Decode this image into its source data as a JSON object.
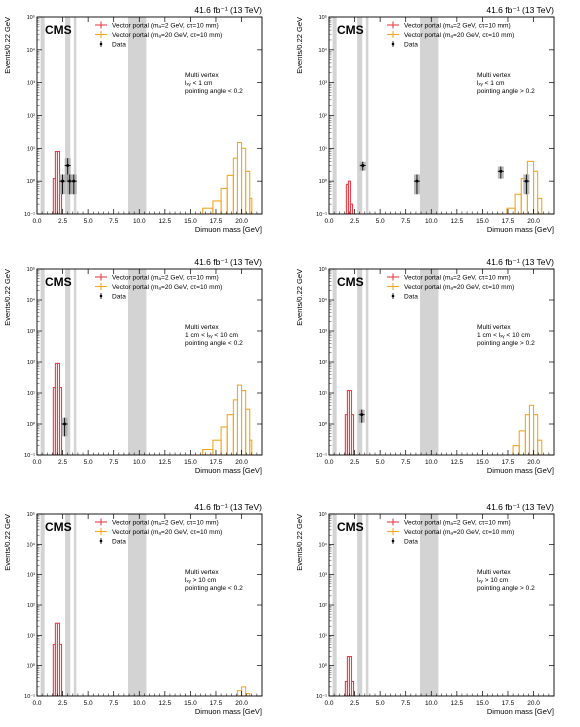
{
  "lumi": "41.6 fb⁻¹ (13 TeV)",
  "cms": "CMS",
  "xlabel": "Dimuon mass [GeV]",
  "ylabel": "Events/0.22 GeV",
  "legend": {
    "sig1": "Vector portal (mₐ=2 GeV, cτ=10 mm)",
    "sig2": "Vector portal (mₐ=20 GeV, cτ=10 mm)",
    "data": "Data"
  },
  "colors": {
    "sig1": "#e8404a",
    "sig2": "#f5a623",
    "band": "#d3d3d3",
    "unc": "#aaaaaa"
  },
  "chart_data": [
    {
      "type": "histogram",
      "region": [
        "Multi vertex",
        "lₓᵧ < 1 cm",
        "pointing angle < 0.2"
      ],
      "xlim": [
        0,
        22
      ],
      "ylim": [
        0.1,
        100000
      ],
      "yscale": "log",
      "xticks": [
        "0.0",
        "2.5",
        "5.0",
        "7.5",
        "10.0",
        "12.5",
        "15.0",
        "17.5",
        "20.0"
      ],
      "yticks": [
        "10⁻¹",
        "10⁰",
        "10¹",
        "10²",
        "10³",
        "10⁴",
        "10⁵"
      ],
      "masked_bands": [
        [
          0.35,
          0.75
        ],
        [
          2.75,
          3.25
        ],
        [
          3.6,
          3.85
        ],
        [
          8.9,
          10.7
        ]
      ],
      "sig1": [
        [
          1.6,
          1.8,
          1.2
        ],
        [
          1.8,
          2.0,
          8
        ],
        [
          2.0,
          2.2,
          8
        ],
        [
          2.2,
          2.4,
          1.0
        ]
      ],
      "sig2": [
        [
          16.2,
          17.2,
          0.15
        ],
        [
          17.2,
          18.0,
          0.25
        ],
        [
          18.0,
          18.6,
          0.6
        ],
        [
          18.6,
          19.2,
          1.5
        ],
        [
          19.2,
          19.6,
          5
        ],
        [
          19.6,
          20.0,
          15
        ],
        [
          20.0,
          20.4,
          10
        ],
        [
          20.4,
          20.8,
          2
        ],
        [
          20.8,
          21.0,
          0.3
        ]
      ],
      "data": [
        {
          "x": 2.5,
          "y": 1.0,
          "unc": 0.6
        },
        {
          "x": 3.0,
          "y": 3.0,
          "unc": 2.0
        },
        {
          "x": 3.2,
          "y": 1.0,
          "unc": 0.6
        },
        {
          "x": 3.6,
          "y": 1.0,
          "unc": 0.6
        }
      ]
    },
    {
      "type": "histogram",
      "region": [
        "Multi vertex",
        "lₓᵧ < 1 cm",
        "pointing angle > 0.2"
      ],
      "xlim": [
        0,
        22
      ],
      "ylim": [
        0.1,
        100000
      ],
      "yscale": "log",
      "xticks": [
        "0.0",
        "2.5",
        "5.0",
        "7.5",
        "10.0",
        "12.5",
        "15.0",
        "17.5",
        "20.0"
      ],
      "yticks": [
        "10⁻¹",
        "10⁰",
        "10¹",
        "10²",
        "10³",
        "10⁴",
        "10⁵"
      ],
      "masked_bands": [
        [
          0.35,
          0.75
        ],
        [
          2.75,
          3.25
        ],
        [
          3.6,
          3.85
        ],
        [
          8.9,
          10.7
        ]
      ],
      "sig1": [
        [
          1.7,
          1.9,
          0.8
        ],
        [
          1.9,
          2.1,
          1.0
        ],
        [
          2.1,
          2.3,
          0.2
        ]
      ],
      "sig2": [
        [
          17.4,
          18.2,
          0.15
        ],
        [
          18.2,
          18.8,
          0.4
        ],
        [
          18.8,
          19.4,
          1.2
        ],
        [
          19.4,
          20.0,
          4.0
        ],
        [
          20.0,
          20.4,
          2.0
        ],
        [
          20.4,
          20.8,
          0.3
        ]
      ],
      "data": [
        {
          "x": 3.3,
          "y": 3.0,
          "unc": 0.9
        },
        {
          "x": 8.6,
          "y": 1.0,
          "unc": 0.6
        },
        {
          "x": 16.8,
          "y": 2.0,
          "unc": 0.8
        },
        {
          "x": 19.3,
          "y": 1.0,
          "unc": 0.6
        }
      ]
    },
    {
      "type": "histogram",
      "region": [
        "Multi vertex",
        "1 cm < lₓᵧ < 10 cm",
        "pointing angle < 0.2"
      ],
      "xlim": [
        0,
        22
      ],
      "ylim": [
        0.1,
        100000
      ],
      "yscale": "log",
      "xticks": [
        "0.0",
        "2.5",
        "5.0",
        "7.5",
        "10.0",
        "12.5",
        "15.0",
        "17.5",
        "20.0"
      ],
      "yticks": [
        "10⁻¹",
        "10⁰",
        "10¹",
        "10²",
        "10³",
        "10⁴",
        "10⁵"
      ],
      "masked_bands": [
        [
          0.35,
          0.75
        ],
        [
          2.75,
          3.25
        ],
        [
          3.6,
          3.85
        ],
        [
          8.9,
          10.7
        ]
      ],
      "sig1": [
        [
          1.6,
          1.8,
          15
        ],
        [
          1.8,
          2.0,
          90
        ],
        [
          2.0,
          2.2,
          90
        ],
        [
          2.2,
          2.4,
          15
        ]
      ],
      "sig2": [
        [
          16.2,
          17.2,
          0.15
        ],
        [
          17.2,
          18.0,
          0.3
        ],
        [
          18.0,
          18.6,
          0.8
        ],
        [
          18.6,
          19.2,
          2.0
        ],
        [
          19.2,
          19.6,
          6
        ],
        [
          19.6,
          20.0,
          18
        ],
        [
          20.0,
          20.4,
          12
        ],
        [
          20.4,
          20.8,
          3
        ],
        [
          20.8,
          21.0,
          0.3
        ]
      ],
      "data": [
        {
          "x": 2.7,
          "y": 1.0,
          "unc": 0.6
        }
      ]
    },
    {
      "type": "histogram",
      "region": [
        "Multi vertex",
        "1 cm < lₓᵧ < 10 cm",
        "pointing angle > 0.2"
      ],
      "xlim": [
        0,
        22
      ],
      "ylim": [
        0.1,
        100000
      ],
      "yscale": "log",
      "xticks": [
        "0.0",
        "2.5",
        "5.0",
        "7.5",
        "10.0",
        "12.5",
        "15.0",
        "17.5",
        "20.0"
      ],
      "yticks": [
        "10⁻¹",
        "10⁰",
        "10¹",
        "10²",
        "10³",
        "10⁴",
        "10⁵"
      ],
      "masked_bands": [
        [
          0.35,
          0.75
        ],
        [
          2.75,
          3.25
        ],
        [
          3.6,
          3.85
        ],
        [
          8.9,
          10.7
        ]
      ],
      "sig1": [
        [
          1.6,
          1.8,
          2
        ],
        [
          1.8,
          2.0,
          12
        ],
        [
          2.0,
          2.2,
          12
        ],
        [
          2.2,
          2.4,
          2
        ]
      ],
      "sig2": [
        [
          18.0,
          18.6,
          0.2
        ],
        [
          18.6,
          19.2,
          0.6
        ],
        [
          19.2,
          19.6,
          2.0
        ],
        [
          19.6,
          20.0,
          4.0
        ],
        [
          20.0,
          20.4,
          2.0
        ],
        [
          20.4,
          20.8,
          0.3
        ]
      ],
      "data": [
        {
          "x": 3.2,
          "y": 2.0,
          "unc": 0.9
        }
      ]
    },
    {
      "type": "histogram",
      "region": [
        "Multi vertex",
        "lₓᵧ > 10 cm",
        "pointing angle < 0.2"
      ],
      "xlim": [
        0,
        22
      ],
      "ylim": [
        0.1,
        100000
      ],
      "yscale": "log",
      "xticks": [
        "0.0",
        "2.5",
        "5.0",
        "7.5",
        "10.0",
        "12.5",
        "15.0",
        "17.5",
        "20.0"
      ],
      "yticks": [
        "10⁻¹",
        "10⁰",
        "10¹",
        "10²",
        "10³",
        "10⁴",
        "10⁵"
      ],
      "masked_bands": [
        [
          0.35,
          0.75
        ],
        [
          2.75,
          3.25
        ],
        [
          3.6,
          3.85
        ],
        [
          8.9,
          10.7
        ]
      ],
      "sig1": [
        [
          1.6,
          1.8,
          5
        ],
        [
          1.8,
          2.0,
          25
        ],
        [
          2.0,
          2.2,
          25
        ],
        [
          2.2,
          2.4,
          5
        ]
      ],
      "sig2": [
        [
          19.6,
          20.0,
          0.15
        ],
        [
          20.0,
          20.4,
          0.2
        ],
        [
          20.4,
          20.8,
          0.12
        ]
      ],
      "data": []
    },
    {
      "type": "histogram",
      "region": [
        "Multi vertex",
        "lₓᵧ > 10 cm",
        "pointing angle > 0.2"
      ],
      "xlim": [
        0,
        22
      ],
      "ylim": [
        0.1,
        100000
      ],
      "yscale": "log",
      "xticks": [
        "0.0",
        "2.5",
        "5.0",
        "7.5",
        "10.0",
        "12.5",
        "15.0",
        "17.5",
        "20.0"
      ],
      "yticks": [
        "10⁻¹",
        "10⁰",
        "10¹",
        "10²",
        "10³",
        "10⁴",
        "10⁵"
      ],
      "masked_bands": [
        [
          0.35,
          0.75
        ],
        [
          2.75,
          3.25
        ],
        [
          3.6,
          3.85
        ],
        [
          8.9,
          10.7
        ]
      ],
      "sig1": [
        [
          1.6,
          1.8,
          0.3
        ],
        [
          1.8,
          2.0,
          2
        ],
        [
          2.0,
          2.2,
          2
        ],
        [
          2.2,
          2.4,
          0.3
        ]
      ],
      "sig2": [],
      "data": []
    }
  ]
}
